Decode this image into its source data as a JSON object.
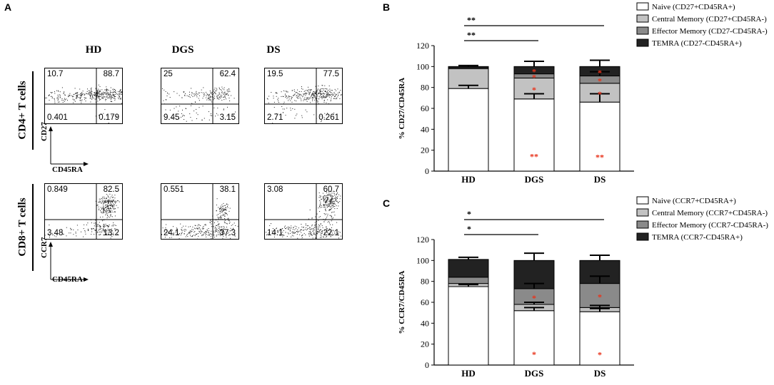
{
  "panel_a": {
    "letter": "A",
    "col_headers": [
      "HD",
      "DGS",
      "DS"
    ],
    "rows": [
      {
        "label": "CD4+ T cells",
        "y_axis": "CD27",
        "x_axis": "CD45RA",
        "plots": [
          {
            "q_ul": "10.7",
            "q_ur": "88.7",
            "q_ll": "0.401",
            "q_lr": "0.179"
          },
          {
            "q_ul": "25",
            "q_ur": "62.4",
            "q_ll": "9.45",
            "q_lr": "3.15"
          },
          {
            "q_ul": "19.5",
            "q_ur": "77.5",
            "q_ll": "2.71",
            "q_lr": "0.261"
          }
        ]
      },
      {
        "label": "CD8+ T cells",
        "y_axis": "CCR7",
        "x_axis": "CD45RA",
        "plots": [
          {
            "q_ul": "0.849",
            "q_ur": "82.5",
            "q_ll": "3.48",
            "q_lr": "13.2"
          },
          {
            "q_ul": "0.551",
            "q_ur": "38.1",
            "q_ll": "24.1",
            "q_lr": "37.3"
          },
          {
            "q_ul": "3.08",
            "q_ur": "60.7",
            "q_ll": "14.1",
            "q_lr": "22.1"
          }
        ]
      }
    ]
  },
  "colors": {
    "naive": "#ffffff",
    "central": "#c2c2c2",
    "effector": "#8a8a8a",
    "temra": "#222222",
    "sig_star": "#e8341c"
  },
  "chart_data": [
    {
      "type": "bar",
      "stacked": true,
      "letter": "B",
      "categories": [
        "HD",
        "DGS",
        "DS"
      ],
      "ylabel": "% CD27/CD45RA",
      "ylim": [
        0,
        120
      ],
      "yticks": [
        "0",
        "20",
        "40",
        "60",
        "80",
        "100",
        "120"
      ],
      "series": [
        {
          "name": "Naive (CD27+CD45RA+)",
          "values": [
            79,
            69,
            66
          ],
          "errors": [
            3,
            5,
            8
          ],
          "stars": [
            "",
            "**",
            "**"
          ]
        },
        {
          "name": "Central Memory (CD27+CD45RA-)",
          "values": [
            19,
            20,
            18
          ],
          "errors": [
            null,
            null,
            null
          ],
          "stars": [
            "",
            "*",
            "*"
          ]
        },
        {
          "name": "Effector Memory (CD27-CD45RA-)",
          "values": [
            1,
            4,
            7
          ],
          "errors": [
            null,
            null,
            4
          ],
          "stars": [
            "",
            "*",
            "*"
          ]
        },
        {
          "name": "TEMRA (CD27-CD45RA+)",
          "values": [
            1,
            7,
            9
          ],
          "errors": [
            1,
            5,
            6
          ],
          "stars": [
            "",
            "*",
            "*"
          ]
        }
      ],
      "comparisons": [
        {
          "from": "HD",
          "to": "DS",
          "label": "**"
        },
        {
          "from": "HD",
          "to": "DGS",
          "label": "**"
        }
      ]
    },
    {
      "type": "bar",
      "stacked": true,
      "letter": "C",
      "categories": [
        "HD",
        "DGS",
        "DS"
      ],
      "ylabel": "% CCR7/CD45RA",
      "ylim": [
        0,
        120
      ],
      "yticks": [
        "0",
        "20",
        "40",
        "60",
        "80",
        "100",
        "120"
      ],
      "series": [
        {
          "name": "Naive (CCR7+CD45RA+)",
          "values": [
            75,
            52,
            51
          ],
          "errors": [
            2,
            3,
            3
          ],
          "stars": [
            "",
            "*",
            "*"
          ]
        },
        {
          "name": "Central Memory (CCR7+CD45RA-)",
          "values": [
            3,
            6,
            4
          ],
          "errors": [
            null,
            2,
            2
          ],
          "stars": [
            "",
            "",
            ""
          ]
        },
        {
          "name": "Effector Memory (CCR7-CD45RA-)",
          "values": [
            6,
            15,
            23
          ],
          "errors": [
            null,
            5,
            7
          ],
          "stars": [
            "",
            "*",
            "*"
          ]
        },
        {
          "name": "TEMRA (CCR7-CD45RA+)",
          "values": [
            17,
            27,
            22
          ],
          "errors": [
            2,
            7,
            5
          ],
          "stars": [
            "",
            "",
            ""
          ]
        }
      ],
      "comparisons": [
        {
          "from": "HD",
          "to": "DS",
          "label": "*"
        },
        {
          "from": "HD",
          "to": "DGS",
          "label": "*"
        }
      ]
    }
  ]
}
